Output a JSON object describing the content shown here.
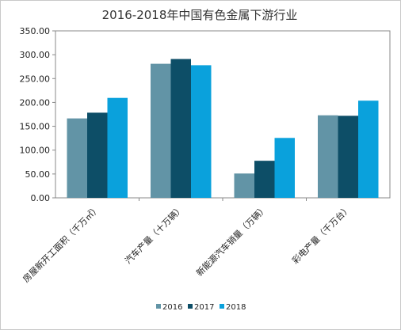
{
  "chart_data": {
    "type": "bar",
    "title": "2016-2018年中国有色金属下游行业",
    "categories": [
      "房屋新开工面积（千万㎡）",
      "汽车产量（十万辆）",
      "新能源汽车销量（万辆）",
      "彩电产量（千万台）"
    ],
    "series": [
      {
        "name": "2016",
        "values": [
          166.5,
          281.0,
          51.0,
          173.0
        ]
      },
      {
        "name": "2017",
        "values": [
          178.5,
          291.0,
          77.7,
          172.0
        ]
      },
      {
        "name": "2018",
        "values": [
          209.5,
          278.0,
          125.6,
          203.7
        ]
      }
    ],
    "ylim": [
      0,
      350
    ],
    "yticks": [
      "0.00",
      "50.00",
      "100.00",
      "150.00",
      "200.00",
      "250.00",
      "300.00",
      "350.00"
    ],
    "grid": false,
    "legend": "bottom",
    "colors": [
      "#6294a6",
      "#0d4e67",
      "#0aa1dc"
    ],
    "xlabel": "",
    "ylabel": ""
  }
}
